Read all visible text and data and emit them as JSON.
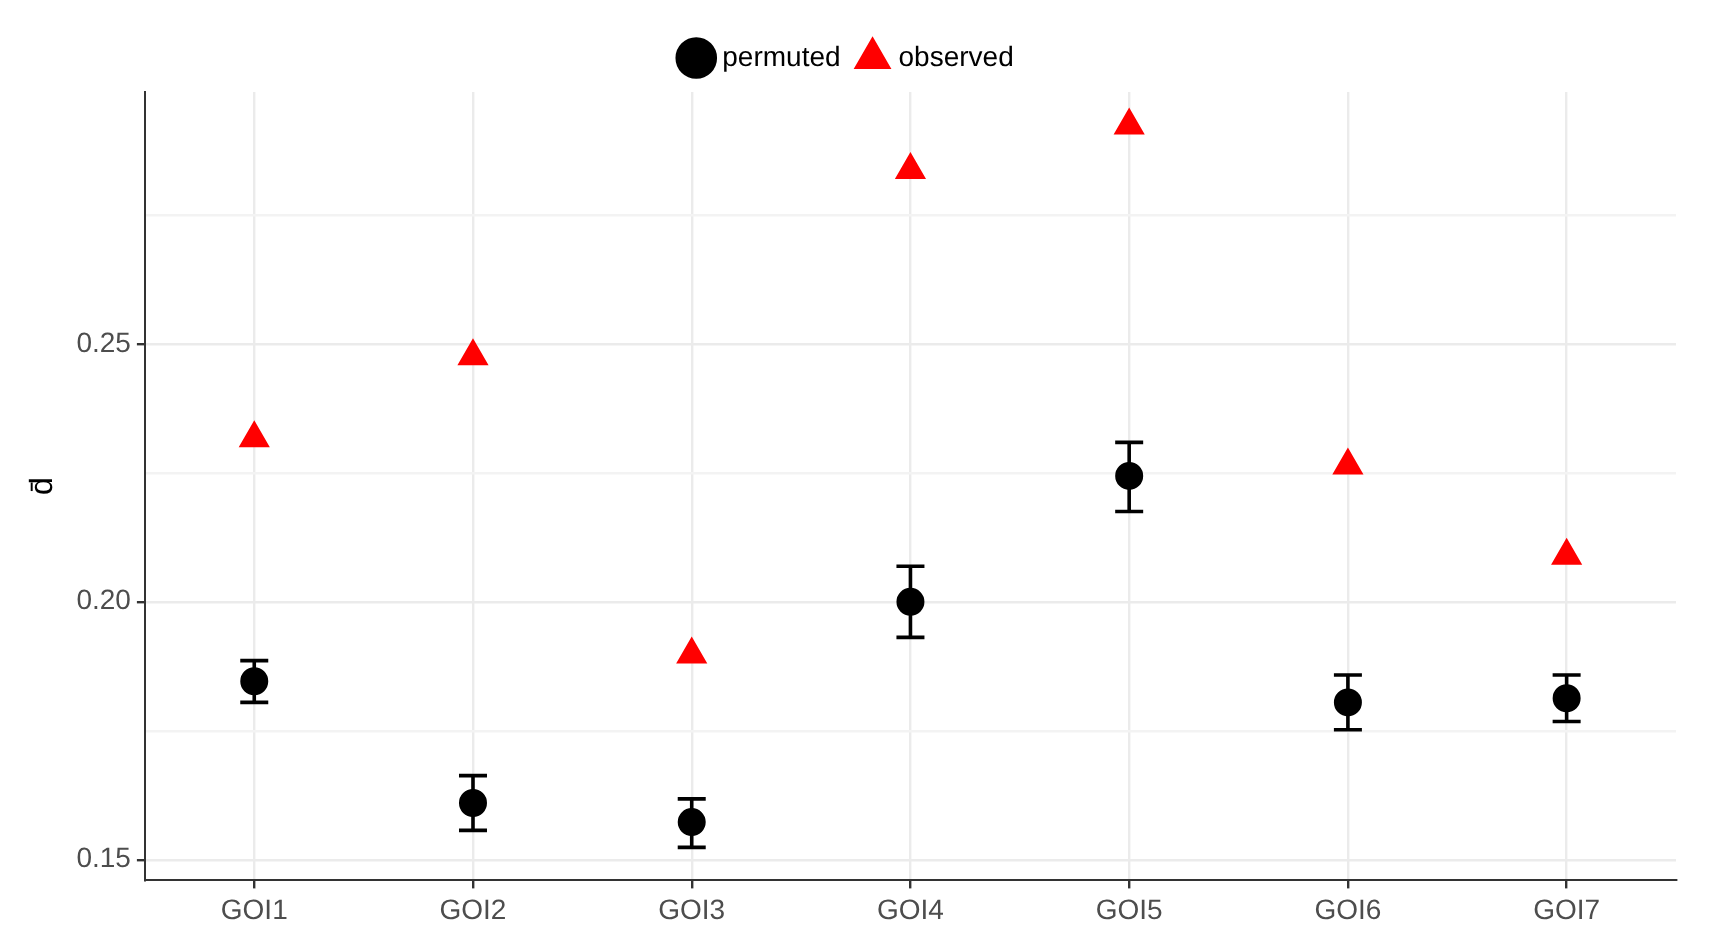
{
  "chart_data": {
    "type": "scatter",
    "ylabel": "d̄",
    "categories": [
      "GOI1",
      "GOI2",
      "GOI3",
      "GOI4",
      "GOI5",
      "GOI6",
      "GOI7"
    ],
    "series": [
      {
        "name": "permuted",
        "color": "#000000",
        "marker": "circle",
        "values": [
          0.1846,
          0.161,
          0.1573,
          0.2,
          0.2244,
          0.1805,
          0.1813
        ],
        "errors": [
          [
            0.1805,
            0.1886
          ],
          [
            0.1557,
            0.1663
          ],
          [
            0.1524,
            0.1618
          ],
          [
            0.1931,
            0.2069
          ],
          [
            0.2175,
            0.2309
          ],
          [
            0.1752,
            0.1858
          ],
          [
            0.1768,
            0.1858
          ]
        ]
      },
      {
        "name": "observed",
        "color": "#ff0000",
        "marker": "triangle",
        "values": [
          0.2317,
          0.2476,
          0.1898,
          0.2837,
          0.2923,
          0.2264,
          0.2089
        ]
      }
    ],
    "ylim": [
      0.146,
      0.2988
    ],
    "yticks": [
      {
        "value": 0.15,
        "label": "0.15"
      },
      {
        "value": 0.175,
        "label": null
      },
      {
        "value": 0.2,
        "label": "0.20"
      },
      {
        "value": 0.225,
        "label": null
      },
      {
        "value": 0.25,
        "label": "0.25"
      },
      {
        "value": 0.275,
        "label": null
      }
    ],
    "grid": true,
    "legend": "top"
  }
}
